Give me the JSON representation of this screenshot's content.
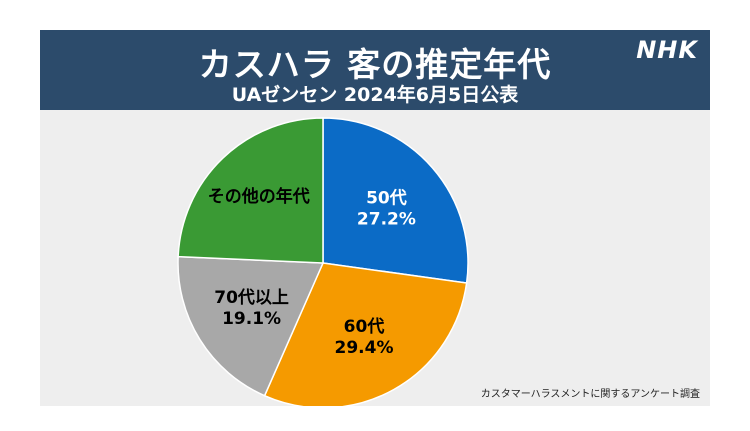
{
  "header": {
    "title": "カスハラ 客の推定年代",
    "subtitle": "UAゼンセン 2024年6月5日公表",
    "logo": "NHK"
  },
  "source": "カスタマーハラスメントに関するアンケート調査",
  "colors": {
    "header_bg": "#2c4b6b",
    "panel_bg": "#eeeeee"
  },
  "chart_data": {
    "type": "pie",
    "title": "カスハラ 客の推定年代",
    "subtitle": "UAゼンセン 2024年6月5日公表",
    "start_angle_deg": 0,
    "direction": "clockwise",
    "slices": [
      {
        "label": "50代",
        "value": 27.2,
        "value_label": "27.2%",
        "color": "#0b6bc6",
        "text_color": "#ffffff"
      },
      {
        "label": "60代",
        "value": 29.4,
        "value_label": "29.4%",
        "color": "#f59a00",
        "text_color": "#000000"
      },
      {
        "label": "70代以上",
        "value": 19.1,
        "value_label": "19.1%",
        "color": "#a8a8a8",
        "text_color": "#000000"
      },
      {
        "label": "その他の年代",
        "value": null,
        "value_label": "",
        "color": "#3a9a34",
        "text_color": "#000000"
      }
    ]
  }
}
